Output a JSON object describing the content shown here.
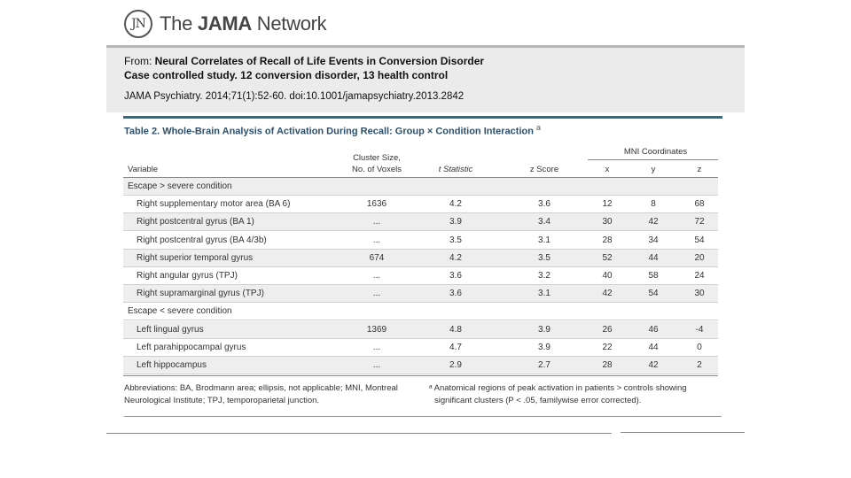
{
  "header": {
    "logo_mark": "JN",
    "logo_text_prefix": "The ",
    "logo_text_bold": "JAMA",
    "logo_text_suffix": " Network"
  },
  "citation": {
    "from_label": "From: ",
    "title": "Neural Correlates of Recall of Life Events in Conversion Disorder",
    "subtitle": "Case controlled study. 12 conversion disorder, 13 health control",
    "reference": "JAMA Psychiatry. 2014;71(1):52-60. doi:10.1001/jamapsychiatry.2013.2842"
  },
  "table": {
    "title": "Table 2. Whole-Brain Analysis of Activation During Recall: Group × Condition Interaction",
    "title_sup": "a",
    "headers": {
      "variable": "Variable",
      "cluster_line1": "Cluster Size,",
      "cluster_line2": "No. of Voxels",
      "t": "t Statistic",
      "z": "z Score",
      "mni": "MNI Coordinates",
      "x": "x",
      "y": "y",
      "zc": "z"
    },
    "rows": [
      {
        "kind": "group",
        "label": "Escape > severe condition"
      },
      {
        "kind": "data",
        "label": "Right supplementary motor area (BA 6)",
        "cluster": "1636",
        "t": "4.2",
        "z": "3.6",
        "x": "12",
        "y": "8",
        "zc": "68"
      },
      {
        "kind": "data",
        "label": "Right postcentral gyrus (BA 1)",
        "cluster": "...",
        "t": "3.9",
        "z": "3.4",
        "x": "30",
        "y": "42",
        "zc": "72"
      },
      {
        "kind": "data",
        "label": "Right postcentral gyrus (BA 4/3b)",
        "cluster": "...",
        "t": "3.5",
        "z": "3.1",
        "x": "28",
        "y": "34",
        "zc": "54"
      },
      {
        "kind": "data",
        "label": "Right superior temporal gyrus",
        "cluster": "674",
        "t": "4.2",
        "z": "3.5",
        "x": "52",
        "y": "44",
        "zc": "20"
      },
      {
        "kind": "data",
        "label": "Right angular gyrus (TPJ)",
        "cluster": "...",
        "t": "3.6",
        "z": "3.2",
        "x": "40",
        "y": "58",
        "zc": "24"
      },
      {
        "kind": "data",
        "label": "Right supramarginal gyrus (TPJ)",
        "cluster": "...",
        "t": "3.6",
        "z": "3.1",
        "x": "42",
        "y": "54",
        "zc": "30"
      },
      {
        "kind": "group",
        "label": "Escape < severe condition"
      },
      {
        "kind": "data",
        "label": "Left lingual gyrus",
        "cluster": "1369",
        "t": "4.8",
        "z": "3.9",
        "x": "26",
        "y": "46",
        "zc": "-4"
      },
      {
        "kind": "data",
        "label": "Left parahippocampal gyrus",
        "cluster": "...",
        "t": "4.7",
        "z": "3.9",
        "x": "22",
        "y": "44",
        "zc": "0"
      },
      {
        "kind": "data",
        "label": "Left hippocampus",
        "cluster": "...",
        "t": "2.9",
        "z": "2.7",
        "x": "28",
        "y": "42",
        "zc": "2"
      }
    ],
    "footnote_left_1": "Abbreviations: BA, Brodmann area; ellipsis, not applicable; MNI, Montreal",
    "footnote_left_2": "Neurological Institute; TPJ, temporoparietal junction.",
    "footnote_right_1": "ᵃ Anatomical regions of peak activation in patients > controls showing",
    "footnote_right_2": "significant clusters (P < .05, familywise error corrected)."
  },
  "colors": {
    "accent_rule": "#2c6e8a",
    "citation_bg": "#ebebeb",
    "shaded_row": "#eeeeee"
  }
}
